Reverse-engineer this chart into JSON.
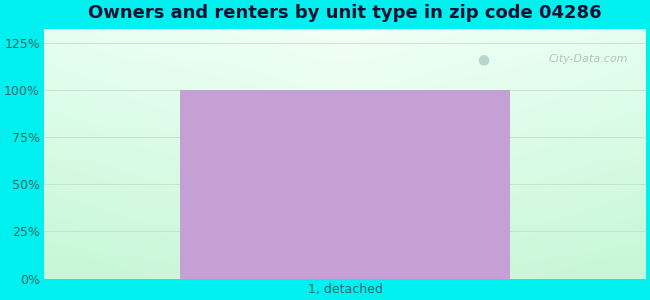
{
  "title": "Owners and renters by unit type in zip code 04286",
  "categories": [
    "1, detached"
  ],
  "values": [
    100
  ],
  "bar_color": "#c4a0d4",
  "bar_edge_color": "#b090c0",
  "yticks": [
    0,
    25,
    50,
    75,
    100,
    125
  ],
  "ytick_labels": [
    "0%",
    "25%",
    "50%",
    "75%",
    "100%",
    "125%"
  ],
  "ylim": [
    0,
    132
  ],
  "title_fontsize": 13,
  "tick_fontsize": 9,
  "xlabel_fontsize": 9,
  "bg_outer_color": "#00efef",
  "watermark_text": "City-Data.com",
  "bar_width": 0.55,
  "grid_color": "#dddddd",
  "text_color": "#336666"
}
